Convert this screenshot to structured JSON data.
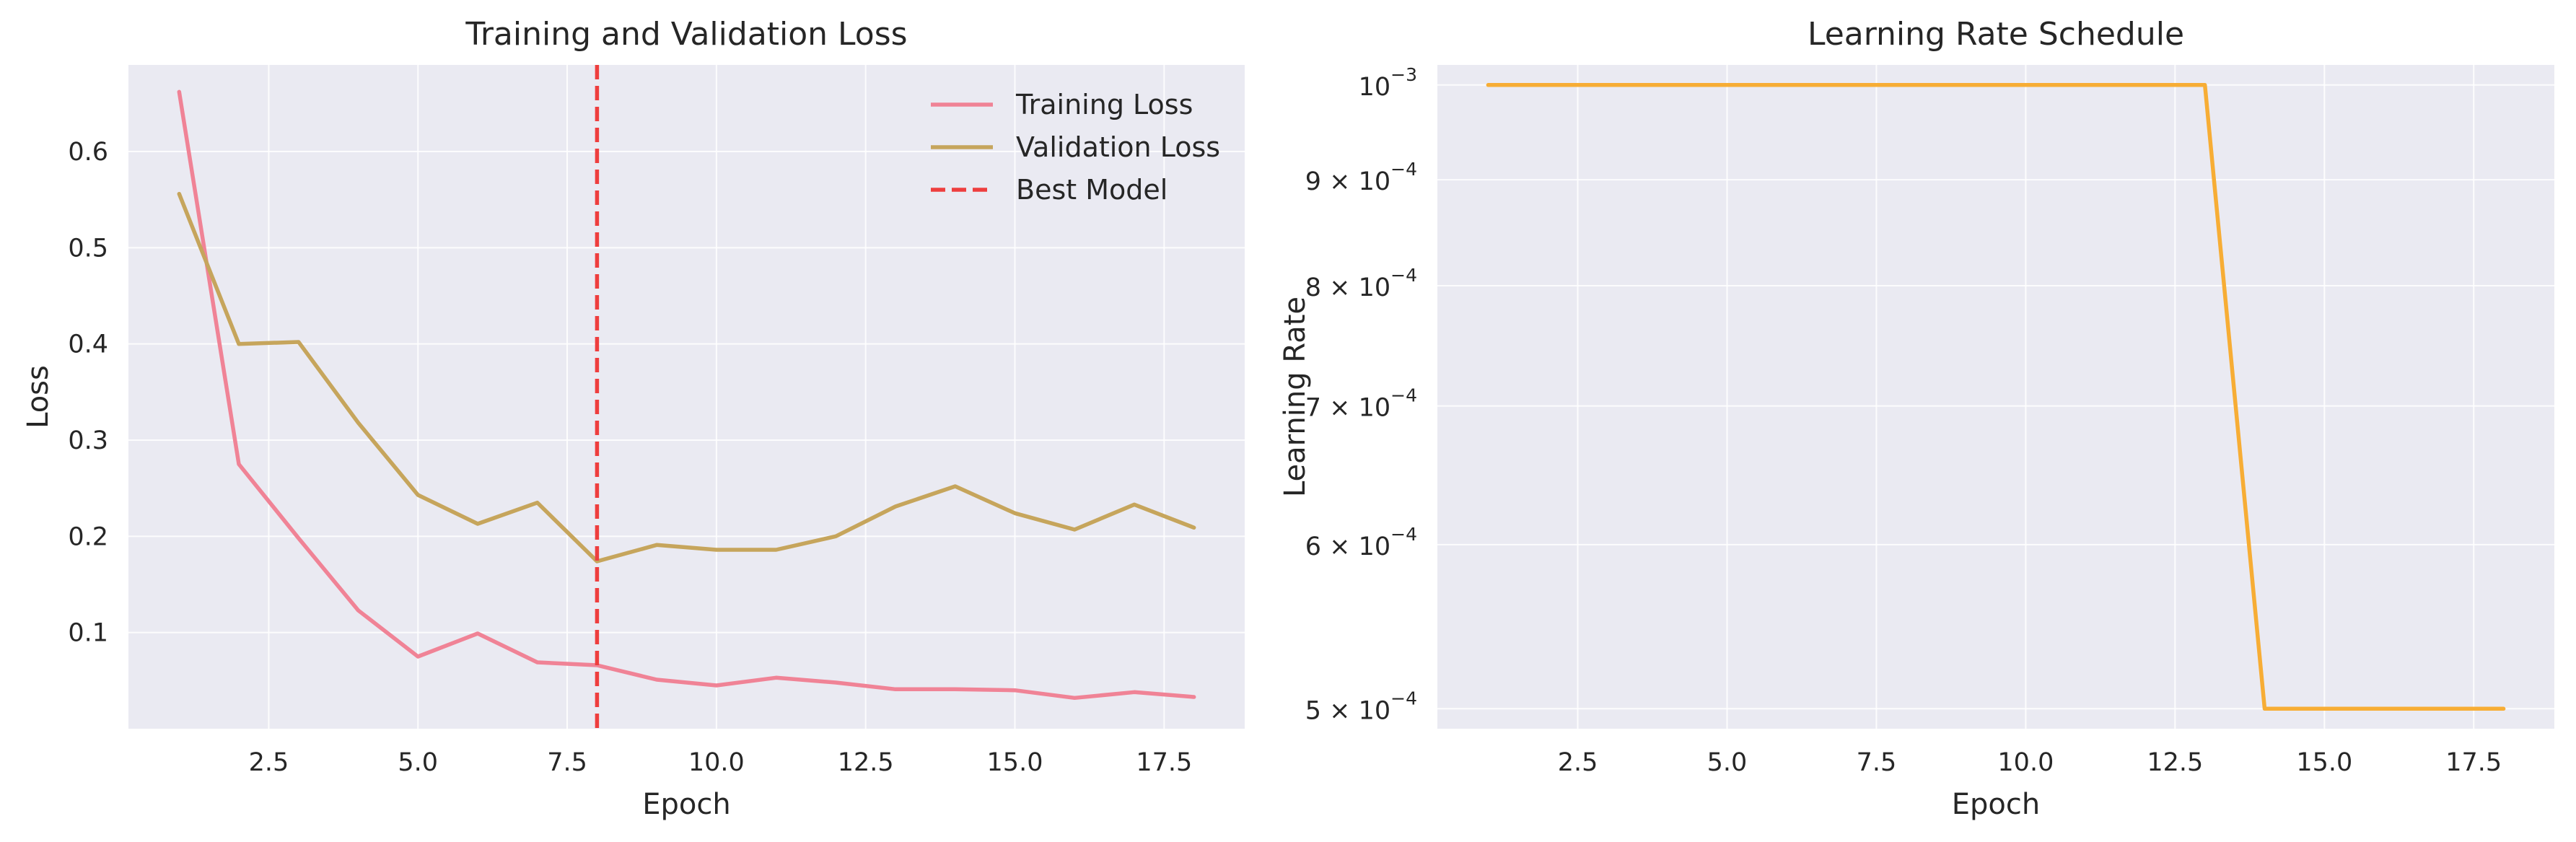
{
  "chart_data": [
    {
      "type": "line",
      "title": "Training and Validation Loss",
      "xlabel": "Epoch",
      "ylabel": "Loss",
      "xlim": [
        0.15,
        18.85
      ],
      "ylim": [
        0,
        0.69
      ],
      "xticks": [
        2.5,
        5.0,
        7.5,
        10.0,
        12.5,
        15.0,
        17.5
      ],
      "xtick_labels": [
        "2.5",
        "5.0",
        "7.5",
        "10.0",
        "12.5",
        "15.0",
        "17.5"
      ],
      "yticks": [
        0.1,
        0.2,
        0.3,
        0.4,
        0.5,
        0.6
      ],
      "ytick_labels": [
        "0.1",
        "0.2",
        "0.3",
        "0.4",
        "0.5",
        "0.6"
      ],
      "grid": true,
      "legend_position": "top-right",
      "x": [
        1,
        2,
        3,
        4,
        5,
        6,
        7,
        8,
        9,
        10,
        11,
        12,
        13,
        14,
        15,
        16,
        17,
        18
      ],
      "series": [
        {
          "name": "Training Loss",
          "color": "#f08396",
          "style": "solid",
          "values": [
            0.662,
            0.275,
            0.198,
            0.123,
            0.075,
            0.099,
            0.069,
            0.066,
            0.051,
            0.045,
            0.053,
            0.048,
            0.041,
            0.041,
            0.04,
            0.032,
            0.038,
            0.033
          ]
        },
        {
          "name": "Validation Loss",
          "color": "#c6a55c",
          "style": "solid",
          "values": [
            0.556,
            0.4,
            0.402,
            0.318,
            0.243,
            0.213,
            0.235,
            0.174,
            0.191,
            0.186,
            0.186,
            0.2,
            0.231,
            0.252,
            0.224,
            0.207,
            0.233,
            0.209
          ]
        }
      ],
      "vlines": [
        {
          "name": "Best Model",
          "x": 8,
          "color": "#ee3e3e",
          "style": "dashed"
        }
      ]
    },
    {
      "type": "line",
      "title": "Learning Rate Schedule",
      "xlabel": "Epoch",
      "ylabel": "Learning Rate",
      "yscale": "log",
      "xlim": [
        0.15,
        18.85
      ],
      "ylim": [
        0.000489,
        0.0010225
      ],
      "xticks": [
        2.5,
        5.0,
        7.5,
        10.0,
        12.5,
        15.0,
        17.5
      ],
      "xtick_labels": [
        "2.5",
        "5.0",
        "7.5",
        "10.0",
        "12.5",
        "15.0",
        "17.5"
      ],
      "yticks": [
        0.001,
        0.0009,
        0.0008,
        0.0007,
        0.0006,
        0.0005
      ],
      "ytick_labels": [
        {
          "base": "10",
          "exp": "−3"
        },
        {
          "base": "9 × 10",
          "exp": "−4"
        },
        {
          "base": "8 × 10",
          "exp": "−4"
        },
        {
          "base": "7 × 10",
          "exp": "−4"
        },
        {
          "base": "6 × 10",
          "exp": "−4"
        },
        {
          "base": "5 × 10",
          "exp": "−4"
        }
      ],
      "grid": true,
      "x": [
        1,
        2,
        3,
        4,
        5,
        6,
        7,
        8,
        9,
        10,
        11,
        12,
        13,
        14,
        15,
        16,
        17,
        18
      ],
      "series": [
        {
          "color": "#f7ad35",
          "style": "solid",
          "values": [
            0.001,
            0.001,
            0.001,
            0.001,
            0.001,
            0.001,
            0.001,
            0.001,
            0.001,
            0.001,
            0.001,
            0.001,
            0.001,
            0.0005,
            0.0005,
            0.0005,
            0.0005,
            0.0005
          ]
        }
      ]
    }
  ]
}
